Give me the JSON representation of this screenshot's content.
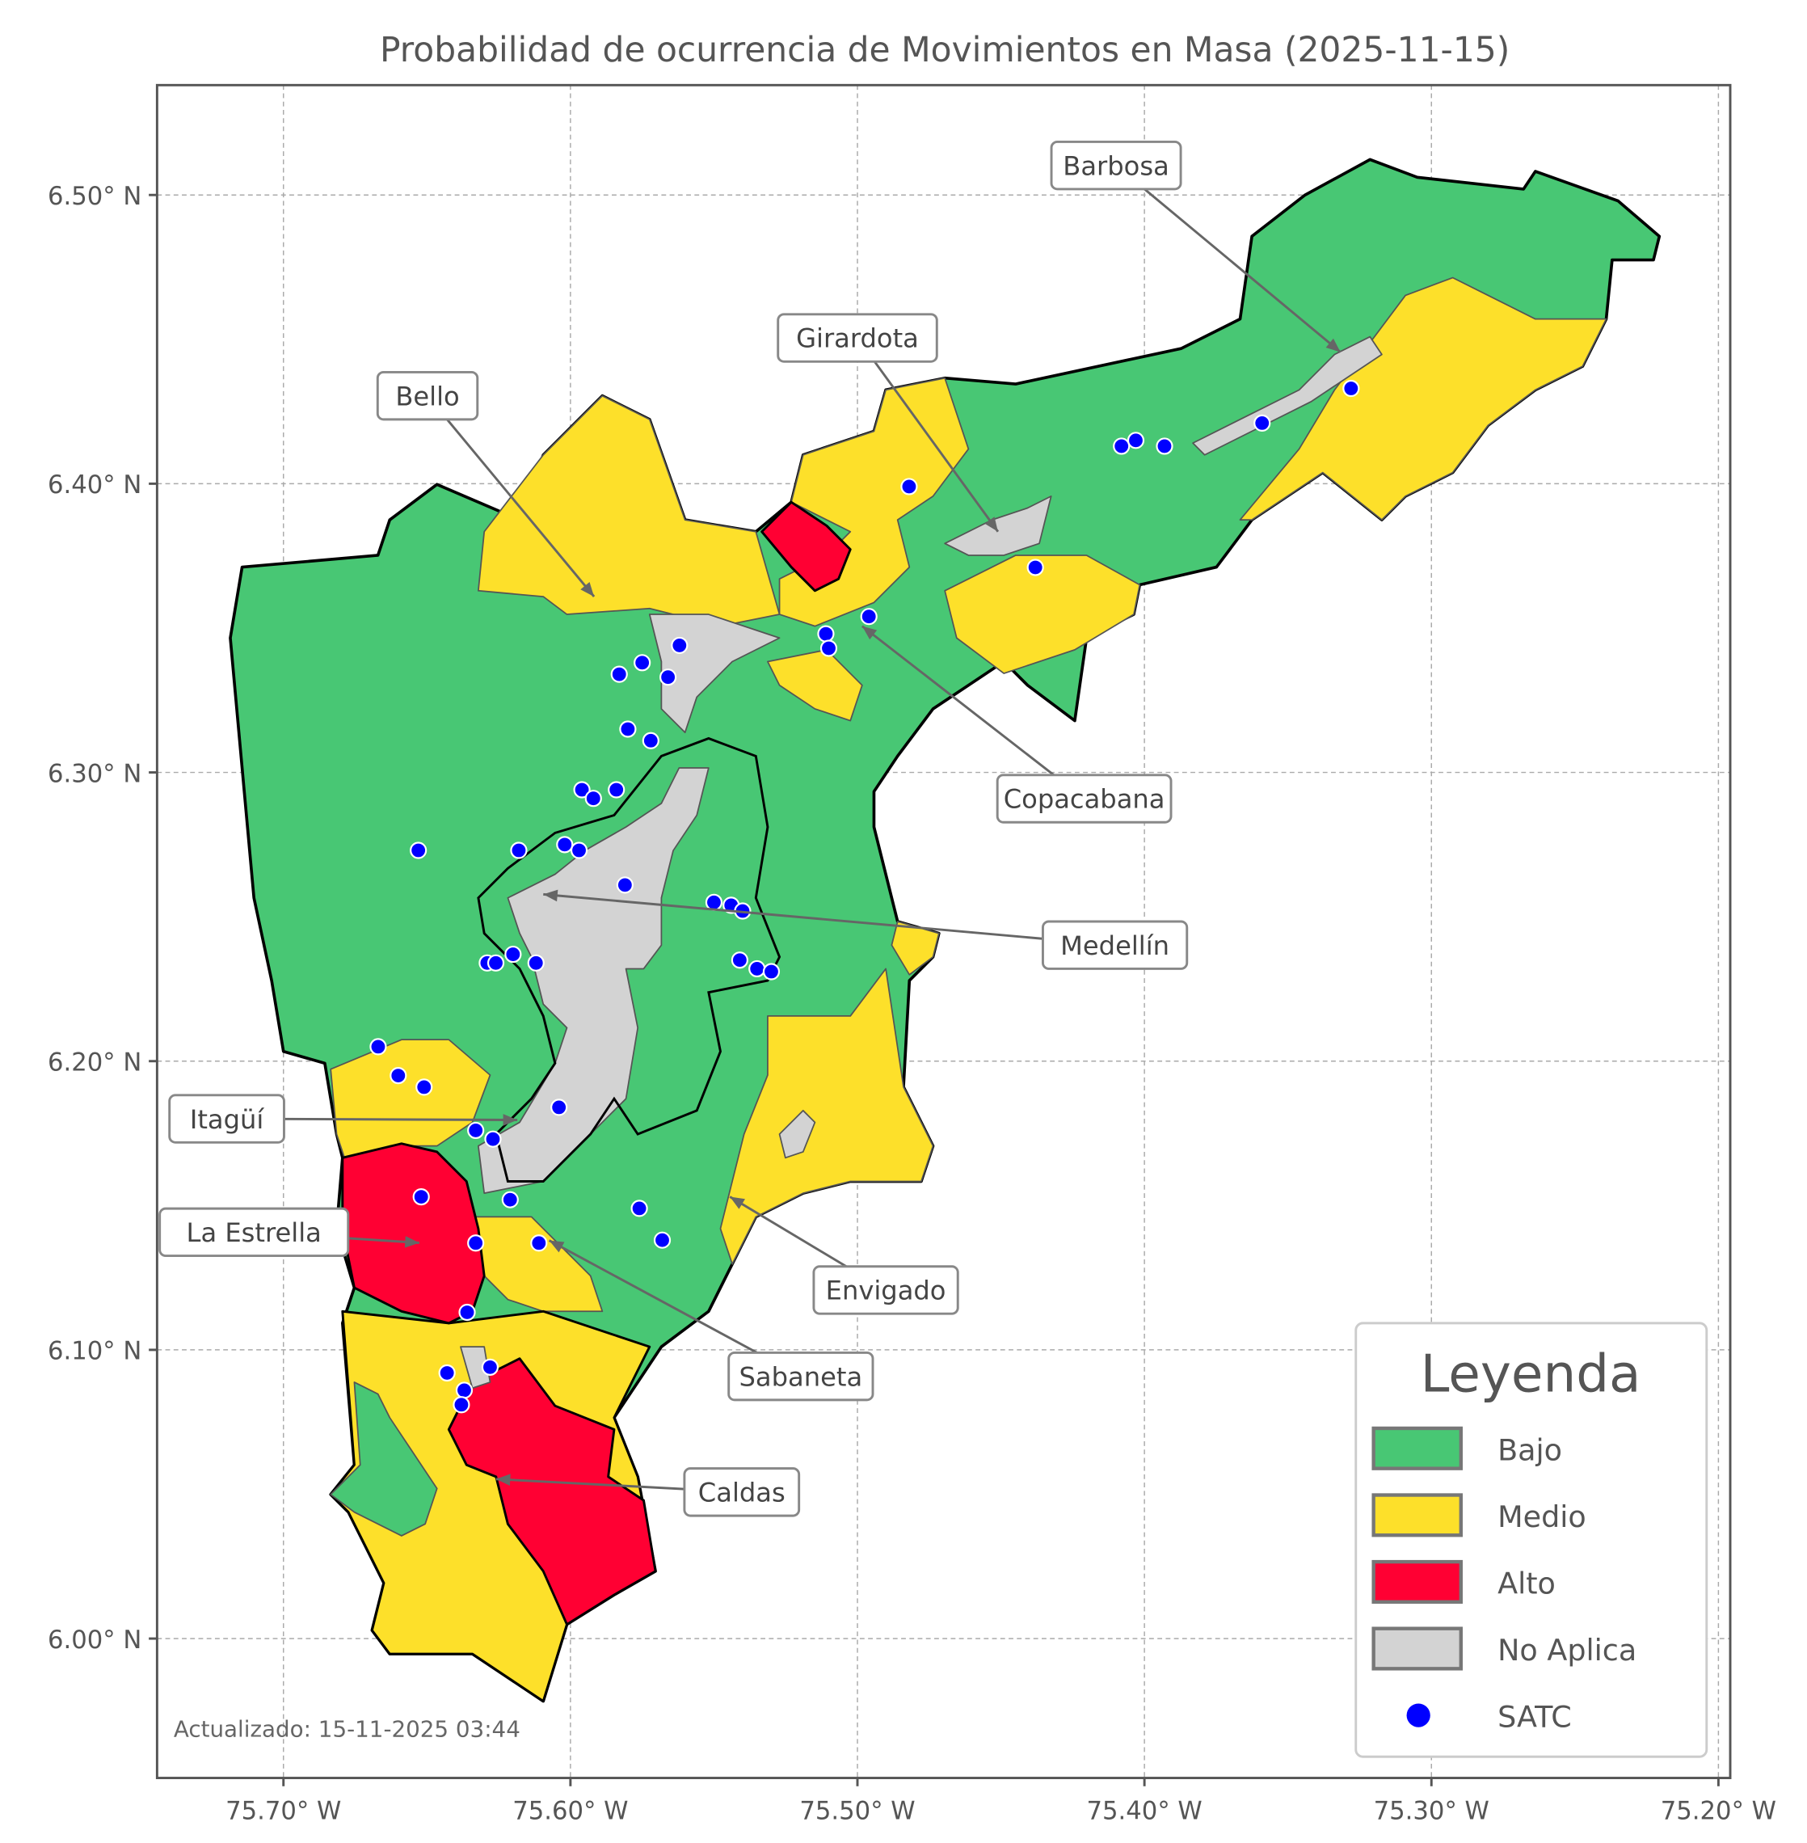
{
  "title": "Probabilidad de ocurrencia de Movimientos en Masa (2025-11-15)",
  "updated": "Actualizado: 15-11-2025 03:44",
  "axes": {
    "x_ticks": [
      "75.70° W",
      "75.60° W",
      "75.50° W",
      "75.40° W",
      "75.30° W",
      "75.20° W"
    ],
    "x_tick_values": [
      -75.7,
      -75.6,
      -75.5,
      -75.4,
      -75.3,
      -75.2
    ],
    "y_ticks": [
      "6.00° N",
      "6.10° N",
      "6.20° N",
      "6.30° N",
      "6.40° N",
      "6.50° N"
    ],
    "y_tick_values": [
      6.0,
      6.1,
      6.2,
      6.3,
      6.4,
      6.5
    ],
    "lon_range": [
      -75.744,
      -75.196
    ],
    "lat_range": [
      5.952,
      6.538
    ],
    "grid": true
  },
  "legend": {
    "title": "Leyenda",
    "placement": "bottom-right",
    "items": [
      {
        "label": "Bajo",
        "color": "#48c774"
      },
      {
        "label": "Medio",
        "color": "#fde02a"
      },
      {
        "label": "Alto",
        "color": "#ff0033"
      },
      {
        "label": "No Aplica",
        "color": "#d3d3d3"
      },
      {
        "label": "SATC",
        "color": "#0000ff"
      }
    ]
  },
  "municipalities": [
    {
      "name": "Barbosa",
      "level": "Bajo / Medio"
    },
    {
      "name": "Girardota",
      "level": "Bajo / Medio"
    },
    {
      "name": "Bello",
      "level": "Bajo / Medio"
    },
    {
      "name": "Copacabana",
      "level": "Bajo / Medio / Alto"
    },
    {
      "name": "Medellín",
      "level": "Bajo / No Aplica"
    },
    {
      "name": "Itagüí",
      "level": "Medio"
    },
    {
      "name": "La Estrella",
      "level": "Alto"
    },
    {
      "name": "Envigado",
      "level": "Bajo / Medio"
    },
    {
      "name": "Sabaneta",
      "level": "Medio"
    },
    {
      "name": "Caldas",
      "level": "Medio / Alto"
    }
  ],
  "satc_stations": [
    [
      -75.482,
      6.399
    ],
    [
      -75.438,
      6.371
    ],
    [
      -75.408,
      6.413
    ],
    [
      -75.403,
      6.415
    ],
    [
      -75.393,
      6.413
    ],
    [
      -75.359,
      6.421
    ],
    [
      -75.328,
      6.433
    ],
    [
      -75.496,
      6.354
    ],
    [
      -75.511,
      6.348
    ],
    [
      -75.51,
      6.343
    ],
    [
      -75.562,
      6.344
    ],
    [
      -75.575,
      6.338
    ],
    [
      -75.566,
      6.333
    ],
    [
      -75.583,
      6.334
    ],
    [
      -75.58,
      6.315
    ],
    [
      -75.572,
      6.311
    ],
    [
      -75.596,
      6.294
    ],
    [
      -75.592,
      6.291
    ],
    [
      -75.584,
      6.294
    ],
    [
      -75.653,
      6.273
    ],
    [
      -75.618,
      6.273
    ],
    [
      -75.602,
      6.275
    ],
    [
      -75.597,
      6.273
    ],
    [
      -75.581,
      6.261
    ],
    [
      -75.55,
      6.255
    ],
    [
      -75.544,
      6.254
    ],
    [
      -75.54,
      6.252
    ],
    [
      -75.541,
      6.235
    ],
    [
      -75.535,
      6.232
    ],
    [
      -75.53,
      6.231
    ],
    [
      -75.629,
      6.234
    ],
    [
      -75.626,
      6.234
    ],
    [
      -75.62,
      6.237
    ],
    [
      -75.612,
      6.234
    ],
    [
      -75.667,
      6.205
    ],
    [
      -75.66,
      6.195
    ],
    [
      -75.651,
      6.191
    ],
    [
      -75.604,
      6.184
    ],
    [
      -75.633,
      6.176
    ],
    [
      -75.627,
      6.173
    ],
    [
      -75.652,
      6.153
    ],
    [
      -75.621,
      6.152
    ],
    [
      -75.576,
      6.149
    ],
    [
      -75.568,
      6.138
    ],
    [
      -75.633,
      6.137
    ],
    [
      -75.611,
      6.137
    ],
    [
      -75.636,
      6.113
    ],
    [
      -75.643,
      6.092
    ],
    [
      -75.637,
      6.086
    ],
    [
      -75.638,
      6.081
    ],
    [
      -75.628,
      6.094
    ]
  ]
}
